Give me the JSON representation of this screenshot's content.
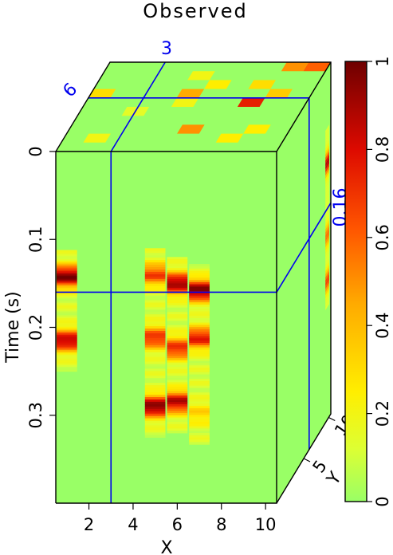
{
  "chart_data": {
    "type": "heatmap",
    "view": "3d-cube-slices",
    "title": "Observed",
    "xlabel": "X",
    "ylabel": "Time (s)",
    "zlabel": "Y",
    "x_ticks": [
      "2",
      "4",
      "6",
      "8",
      "10"
    ],
    "x_range": [
      0.5,
      10.5
    ],
    "t_ticks": [
      "0",
      "0.1",
      "0.2",
      "0.3"
    ],
    "t_range": [
      0,
      0.4
    ],
    "y_ticks": [
      "5",
      "10"
    ],
    "slice_labels": {
      "x": "3",
      "y": "6",
      "t": "0.16"
    },
    "slice_values": {
      "x": 3,
      "y": 6,
      "t": 0.16
    },
    "colorbar": {
      "ticks": [
        "0",
        "0.2",
        "0.4",
        "0.6",
        "0.8",
        "1"
      ],
      "min": 0,
      "max": 1,
      "colormap": "hot-reversed"
    },
    "front_traces": [
      {
        "x": 1,
        "events": [
          [
            0.142,
            0.85
          ],
          [
            0.215,
            0.75
          ]
        ]
      },
      {
        "x": 5,
        "events": [
          [
            0.14,
            0.55
          ],
          [
            0.212,
            0.6
          ],
          [
            0.29,
            0.85
          ]
        ]
      },
      {
        "x": 6,
        "events": [
          [
            0.15,
            0.8
          ],
          [
            0.224,
            0.6
          ],
          [
            0.285,
            0.75
          ]
        ]
      },
      {
        "x": 7,
        "events": [
          [
            0.158,
            0.85
          ],
          [
            0.212,
            0.65
          ],
          [
            0.298,
            0.2
          ]
        ]
      }
    ],
    "side_traces": [
      {
        "events": [
          [
            0.108,
            0.75
          ],
          [
            0.19,
            0.45
          ],
          [
            0.242,
            0.55
          ]
        ]
      }
    ],
    "top_cells": [
      {
        "x": 2,
        "y": 2,
        "v": 0.2
      },
      {
        "x": 6,
        "y": 3,
        "v": 0.5
      },
      {
        "x": 8,
        "y": 2,
        "v": 0.25
      },
      {
        "x": 9,
        "y": 3,
        "v": 0.25
      },
      {
        "x": 3,
        "y": 5,
        "v": 0.15
      },
      {
        "x": 5,
        "y": 6,
        "v": 0.2
      },
      {
        "x": 8,
        "y": 6,
        "v": 0.75
      },
      {
        "x": 1,
        "y": 7,
        "v": 0.3
      },
      {
        "x": 5,
        "y": 7,
        "v": 0.45
      },
      {
        "x": 9,
        "y": 7,
        "v": 0.35
      },
      {
        "x": 6,
        "y": 8,
        "v": 0.25
      },
      {
        "x": 8,
        "y": 8,
        "v": 0.3
      },
      {
        "x": 5,
        "y": 9,
        "v": 0.2
      },
      {
        "x": 9,
        "y": 10,
        "v": 0.5
      },
      {
        "x": 10,
        "y": 10,
        "v": 0.6
      }
    ]
  }
}
